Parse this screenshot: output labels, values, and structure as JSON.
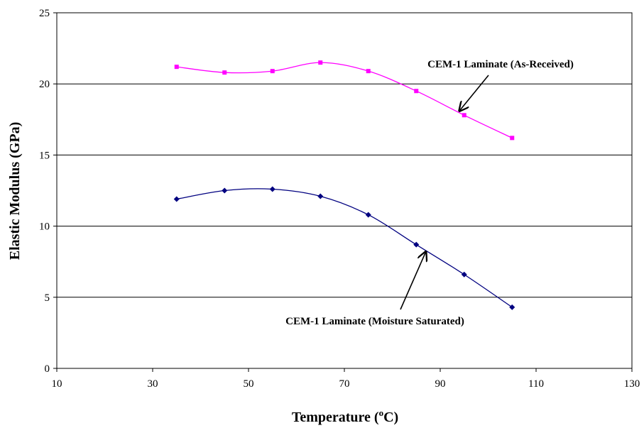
{
  "chart_data": {
    "type": "line",
    "xlabel": {
      "prefix": "Temperature (",
      "superscript": "o",
      "suffix": "C)"
    },
    "ylabel": "Elastic Modulus (GPa)",
    "xlim": [
      10,
      130
    ],
    "ylim": [
      0,
      25
    ],
    "xticks": [
      "10",
      "30",
      "50",
      "70",
      "90",
      "110",
      "130"
    ],
    "yticks": [
      "0",
      "5",
      "10",
      "15",
      "20",
      "25"
    ],
    "grid": "horizontal",
    "legend": "none",
    "series": [
      {
        "name": "CEM-1 Laminate (As-Received)",
        "color": "#ff00ff",
        "marker": "square",
        "x": [
          35,
          45,
          55,
          65,
          75,
          85,
          95,
          105
        ],
        "y": [
          21.2,
          20.8,
          20.9,
          21.5,
          20.9,
          19.5,
          17.8,
          16.2
        ]
      },
      {
        "name": "CEM-1 Laminate (Moisture Saturated)",
        "color": "#000080",
        "marker": "diamond",
        "x": [
          35,
          45,
          55,
          65,
          75,
          85,
          95,
          105
        ],
        "y": [
          11.9,
          12.5,
          12.6,
          12.1,
          10.8,
          8.7,
          6.6,
          4.3
        ]
      }
    ],
    "annotations": [
      {
        "text": "CEM-1 Laminate (As-Received)",
        "arrow_to": [
          94,
          18.1
        ]
      },
      {
        "text": "CEM-1 Laminate (Moisture Saturated)",
        "arrow_to": [
          87,
          8.2
        ]
      }
    ]
  }
}
